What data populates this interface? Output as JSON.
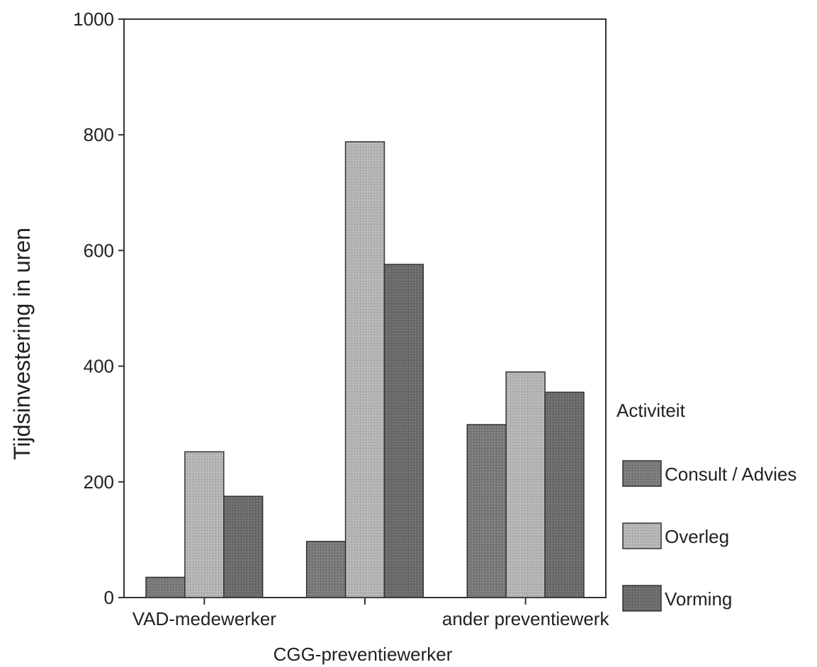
{
  "chart_data": {
    "type": "bar",
    "title": "",
    "xlabel": "CGG-preventiewerker",
    "ylabel": "Tijdsinvestering in uren",
    "ylim": [
      0,
      1000
    ],
    "yticks": [
      "0",
      "200",
      "400",
      "600",
      "800",
      "1000"
    ],
    "categories": [
      "VAD-medewerker",
      "",
      "ander preventiewerk"
    ],
    "series": [
      {
        "name": "Consult / Advies",
        "values": [
          35,
          97,
          299
        ],
        "color": "#7a7a7a"
      },
      {
        "name": "Overleg",
        "values": [
          252,
          788,
          390
        ],
        "color": "#b4b4b4"
      },
      {
        "name": "Vorming",
        "values": [
          175,
          576,
          355
        ],
        "color": "#6c6c6c"
      }
    ],
    "legend": {
      "title": "Activiteit",
      "placement": "right"
    },
    "grid": false
  }
}
